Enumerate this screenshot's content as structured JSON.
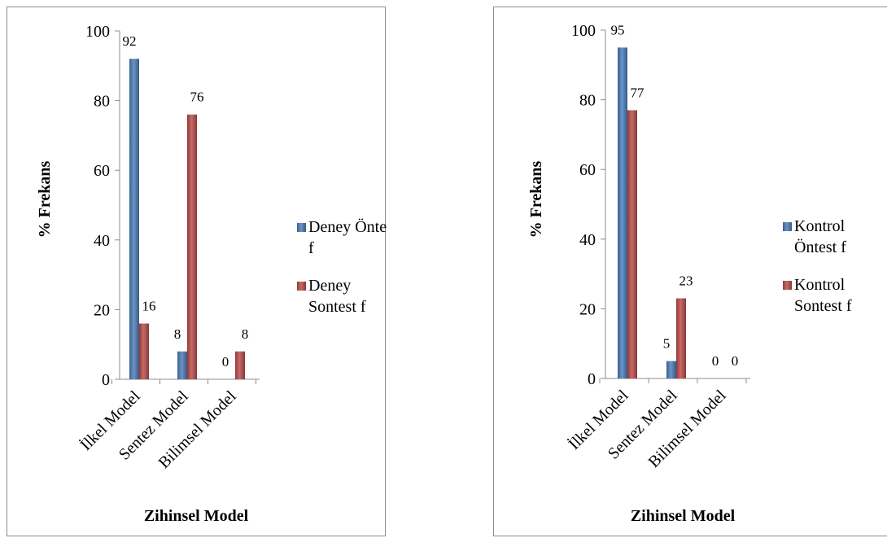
{
  "chart_data": [
    {
      "type": "bar",
      "categories": [
        "İlkel Model",
        "Sentez Model",
        "Bilimsel Model"
      ],
      "series": [
        {
          "name": "Deney Öntest f",
          "name_lines": [
            "Deney Öntest",
            "f"
          ],
          "values": [
            92,
            8,
            0
          ],
          "color": "#4f81bd"
        },
        {
          "name": "Deney Sontest f",
          "name_lines": [
            "Deney",
            "Sontest f"
          ],
          "values": [
            16,
            76,
            8
          ],
          "color": "#c0504d"
        }
      ],
      "xlabel": "Zihinsel Model",
      "ylabel": "% Frekans",
      "ylim": [
        0,
        100
      ],
      "yticks": [
        0,
        20,
        40,
        60,
        80,
        100
      ],
      "grid": false,
      "legend": "right",
      "data_labels": true
    },
    {
      "type": "bar",
      "categories": [
        "İlkel Model",
        "Sentez Model",
        "Bilimsel Model"
      ],
      "series": [
        {
          "name": "Kontrol Öntest f",
          "name_lines": [
            "Kontrol",
            "Öntest f"
          ],
          "values": [
            95,
            5,
            0
          ],
          "color": "#4f81bd"
        },
        {
          "name": "Kontrol Sontest f",
          "name_lines": [
            "Kontrol",
            "Sontest f"
          ],
          "values": [
            77,
            23,
            0
          ],
          "color": "#c0504d"
        }
      ],
      "xlabel": "Zihinsel Model",
      "ylabel": "% Frekans",
      "ylim": [
        0,
        100
      ],
      "yticks": [
        0,
        20,
        40,
        60,
        80,
        100
      ],
      "grid": false,
      "legend": "right",
      "data_labels": true
    }
  ]
}
